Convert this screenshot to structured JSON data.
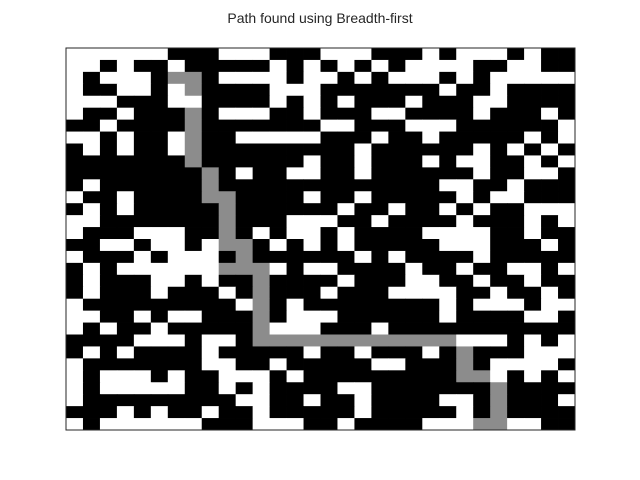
{
  "chart_data": {
    "type": "heatmap",
    "title": "Path found using Breadth-first",
    "xlabel": "",
    "ylabel": "",
    "rows": 32,
    "cols": 30,
    "colormap": {
      "0": "#000000",
      "1": "#ffffff",
      "2": "#8c8c8c"
    },
    "legend": "none",
    "grid": false,
    "grid_values": [
      "111111000111000111000101110100",
      "110100100000101010101111001100",
      "101110220111101101011101011111",
      "100110120000111000000010010000",
      "111000110000101010001000110000",
      "100100020111001000110000100010",
      "001000020000000110001110000001",
      "110100120011111000100100000101",
      "010100120000000001000000101010",
      "000000020000001001000101100101",
      "000000002010011001000000100110",
      "010000002000000000000011001000",
      "100100002200001001000001011000",
      "010100000200000010010010100111",
      "110000000200011100100001000101",
      "100011100201011010000111100100",
      "001101101220101010000011100010",
      "100010111020000001010000100000",
      "010111111222101100001001001101",
      "010001101002000010001100100100",
      "010001000102000100011110010010",
      "100000000012010000000010111011",
      "110010110002011100000010000110",
      "101001000002111000100000000000",
      "000011101102222222222221110101",
      "010100001000001001000102000111",
      "100000001100100000110002011110",
      "101110100111010000000002210101",
      "101111100101000011000000020000",
      "100000000011001001000011020001",
      "000101001001000001000001020000",
      "101111110001110010000111221100"
    ]
  }
}
